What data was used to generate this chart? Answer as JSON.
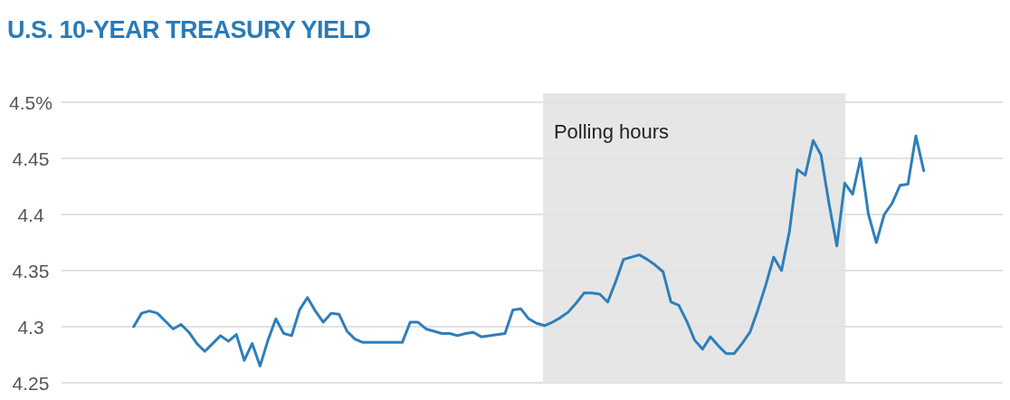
{
  "chart_data": {
    "type": "line",
    "title": "U.S. 10-YEAR TREASURY YIELD",
    "ylim": [
      4.25,
      4.5
    ],
    "categories": [
      null,
      null,
      null,
      null,
      null,
      null,
      null,
      null,
      null,
      null,
      null,
      null,
      null,
      null,
      null,
      null,
      null,
      null,
      null,
      null,
      null,
      null,
      null,
      null,
      null,
      null,
      null,
      null,
      null,
      null,
      null,
      null,
      null,
      null,
      null,
      null,
      null,
      null,
      null,
      null,
      null,
      null,
      null,
      null,
      null,
      null,
      null,
      null,
      null,
      null,
      null,
      null,
      null,
      null,
      null,
      null,
      null,
      null,
      null,
      null,
      null,
      null,
      null,
      null,
      null,
      null,
      null,
      null,
      null,
      null,
      null,
      null,
      null,
      null,
      null,
      null,
      null,
      null,
      null,
      null,
      null,
      null,
      null,
      null,
      null,
      null,
      null,
      null,
      null,
      null,
      null,
      null,
      null,
      null,
      null,
      null,
      null,
      null,
      null,
      null,
      null
    ],
    "yticks": [
      {
        "value": 4.5,
        "label": "4.5%"
      },
      4.45,
      4.4,
      4.35,
      4.3,
      4.25
    ],
    "grid": "y",
    "annotations": [
      "Polling hours"
    ],
    "series": [
      {
        "color": "#2e7fba",
        "values": [
          4.3,
          4.312,
          4.314,
          4.312,
          4.305,
          4.298,
          4.302,
          4.295,
          4.285,
          4.278,
          4.285,
          4.292,
          4.287,
          4.293,
          4.27,
          4.285,
          4.265,
          4.288,
          4.307,
          4.294,
          4.292,
          4.315,
          4.326,
          4.314,
          4.304,
          4.312,
          4.311,
          4.296,
          4.289,
          4.286,
          4.286,
          4.286,
          4.286,
          4.286,
          4.286,
          4.304,
          4.304,
          4.298,
          4.296,
          4.294,
          4.294,
          4.292,
          4.294,
          4.295,
          4.291,
          4.292,
          4.293,
          4.294,
          4.315,
          4.316,
          4.307,
          4.303,
          4.301,
          4.304,
          4.308,
          4.313,
          4.321,
          4.33,
          4.33,
          4.329,
          4.322,
          4.34,
          4.36,
          4.362,
          4.364,
          4.36,
          4.355,
          4.349,
          4.322,
          4.319,
          4.305,
          4.288,
          4.28,
          4.291,
          4.283,
          4.276,
          4.276,
          4.285,
          4.295,
          4.315,
          4.337,
          4.362,
          4.35,
          4.385,
          4.44,
          4.435,
          4.466,
          4.453,
          4.41,
          4.372,
          4.428,
          4.418,
          4.45,
          4.4,
          4.375,
          4.4,
          4.41,
          4.426,
          4.427,
          4.47,
          4.439
        ]
      }
    ]
  }
}
